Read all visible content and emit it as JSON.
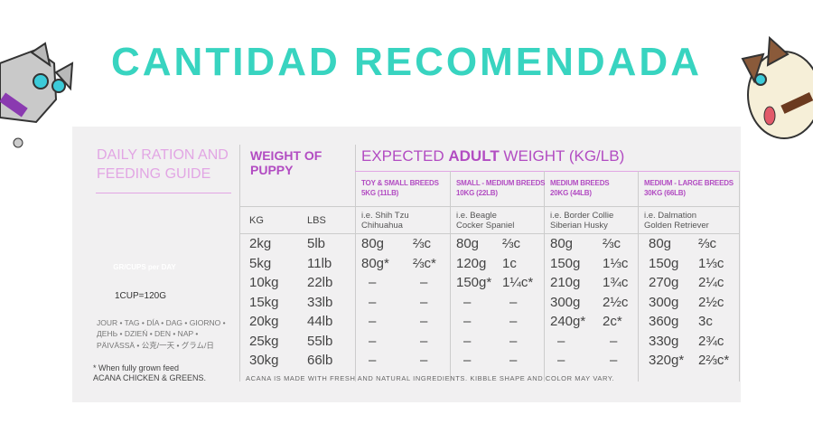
{
  "header": {
    "title": "CANTIDAD RECOMENDADA"
  },
  "guide": {
    "title": [
      "DAILY RATION AND",
      "FEEDING GUIDE"
    ],
    "bowl_label": "GR/CUPS per DAY",
    "cup": "1CUP=120G",
    "languages": [
      "JOUR • TAG • DÍA • DAG • GIORNO •",
      "ДЕНЬ • DZIEŃ • DEN • NAP •",
      "PÄIVÄSSÄ • 公克/一天 • グラム/日"
    ],
    "note": [
      "* When fully grown feed",
      "ACANA CHICKEN & GREENS."
    ]
  },
  "table": {
    "puppy_header": [
      "WEIGHT OF",
      "PUPPY"
    ],
    "units": [
      "KG",
      "LBS"
    ],
    "adult_header": [
      "EXPECTED ",
      "ADULT",
      " WEIGHT (KG/LB)"
    ],
    "breeds": [
      {
        "name": "TOY & SMALL BREEDS",
        "weight": "5KG (11LB)",
        "examples": [
          "i.e. Shih Tzu",
          "Chihuahua"
        ]
      },
      {
        "name": "SMALL - MEDIUM BREEDS",
        "weight": "10KG (22LB)",
        "examples": [
          "i.e. Beagle",
          "Cocker Spaniel"
        ]
      },
      {
        "name": "MEDIUM BREEDS",
        "weight": "20KG (44LB)",
        "examples": [
          "i.e. Border Collie",
          "Siberian Husky"
        ]
      },
      {
        "name": "MEDIUM - LARGE BREEDS",
        "weight": "30KG (66LB)",
        "examples": [
          "i.e. Dalmation",
          "Golden Retriever"
        ]
      }
    ],
    "rows": [
      [
        "2kg",
        "5lb",
        "80g",
        "⅔c",
        "80g",
        "⅔c",
        "80g",
        "⅔c",
        "80g",
        "⅔c"
      ],
      [
        "5kg",
        "11lb",
        "80g*",
        "⅔c*",
        "120g",
        "1c",
        "150g",
        "1⅓c",
        "150g",
        "1⅓c"
      ],
      [
        "10kg",
        "22lb",
        "–",
        "–",
        "150g*",
        "1¼c*",
        "210g",
        "1¾c",
        "270g",
        "2¼c"
      ],
      [
        "15kg",
        "33lb",
        "–",
        "–",
        "–",
        "–",
        "300g",
        "2½c",
        "300g",
        "2½c"
      ],
      [
        "20kg",
        "44lb",
        "–",
        "–",
        "–",
        "–",
        "240g*",
        "2c*",
        "360g",
        "3c"
      ],
      [
        "25kg",
        "55lb",
        "–",
        "–",
        "–",
        "–",
        "–",
        "–",
        "330g",
        "2¾c"
      ],
      [
        "30kg",
        "66lb",
        "–",
        "–",
        "–",
        "–",
        "–",
        "–",
        "320g*",
        "2⅔c*"
      ]
    ]
  },
  "footer": "ACANA IS MADE WITH FRESH AND NATURAL INGREDIENTS. KIBBLE SHAPE AND COLOR MAY VARY."
}
